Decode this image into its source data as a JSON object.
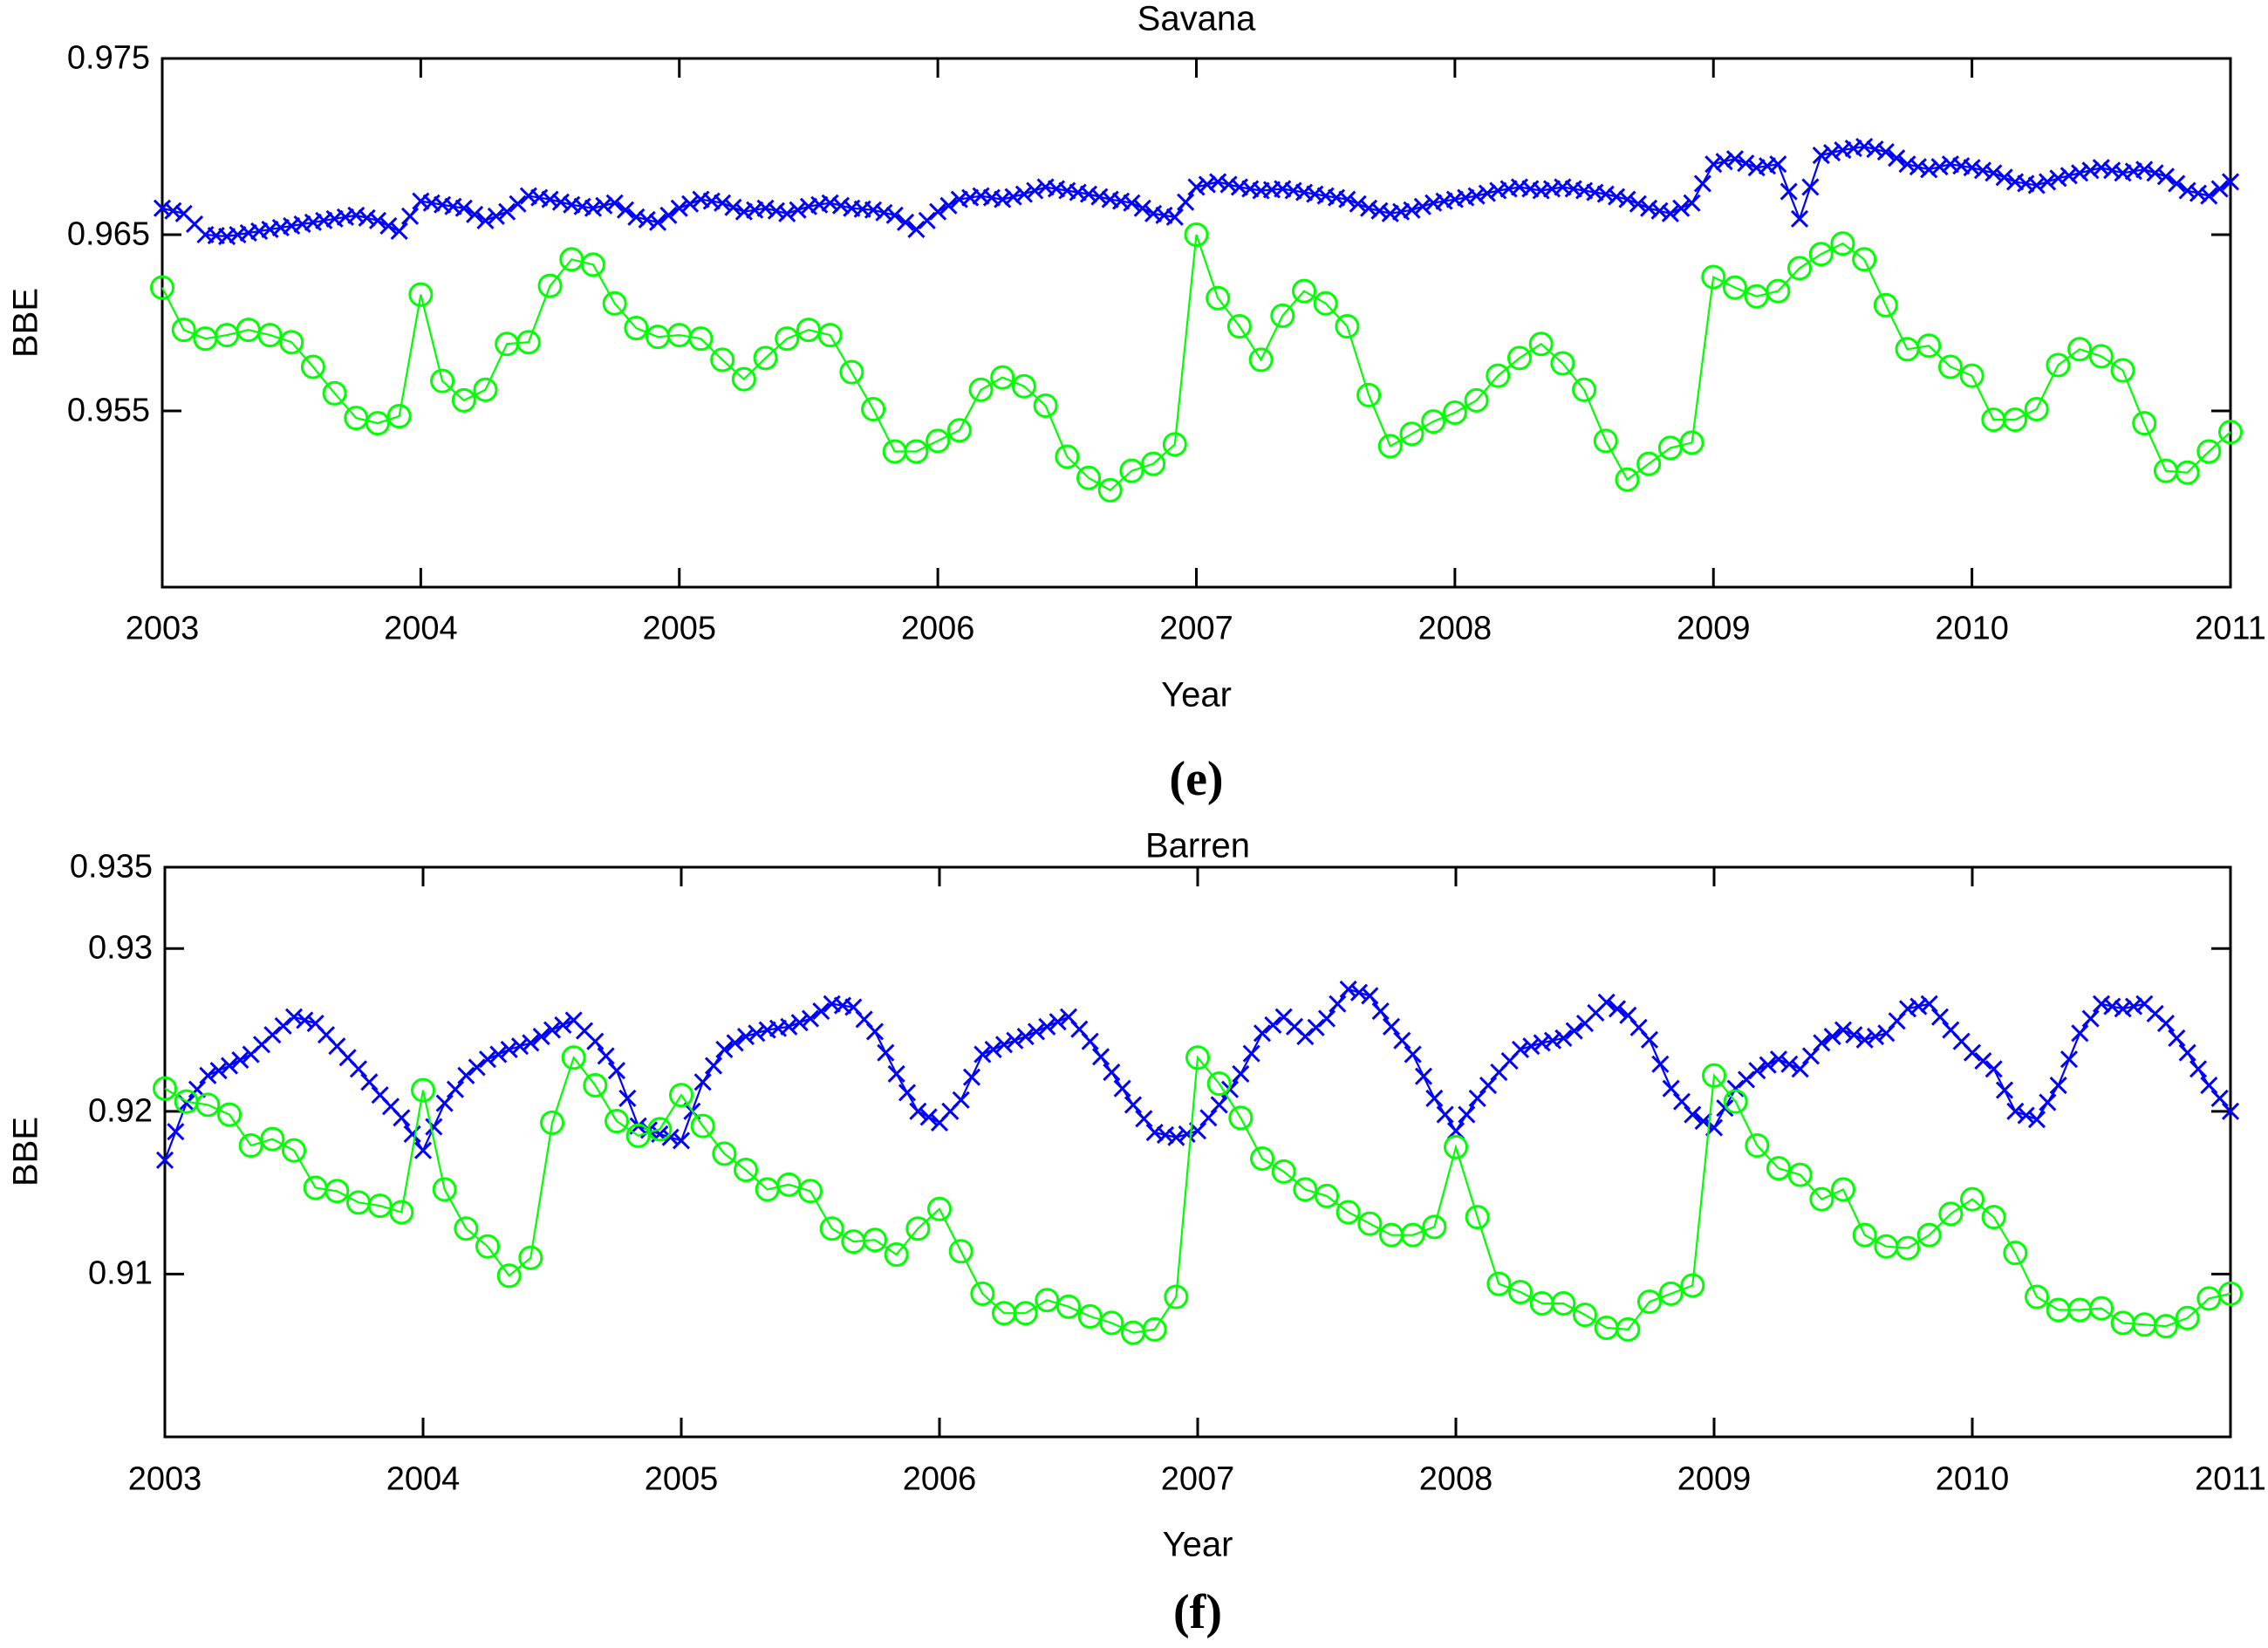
{
  "colors": {
    "axis": "#000000",
    "series_blue": "#0000FF",
    "series_green": "#00FF00",
    "background": "#FFFFFF"
  },
  "chart_data": [
    {
      "type": "line",
      "title": "Savana",
      "xlabel": "Year",
      "ylabel": "BBE",
      "panel_label": "(e)",
      "xlim": [
        2003,
        2011
      ],
      "ylim": [
        0.945,
        0.975
      ],
      "xticks": [
        2003,
        2004,
        2005,
        2006,
        2007,
        2008,
        2009,
        2010,
        2011
      ],
      "xtick_labels": [
        "2003",
        "2004",
        "2005",
        "2006",
        "2007",
        "2008",
        "2009",
        "2010",
        "2011"
      ],
      "yticks": [
        0.955,
        0.965,
        0.975
      ],
      "ytick_labels": [
        "0.955",
        "0.965",
        "0.975"
      ],
      "grid": false,
      "legend": "none",
      "x_rule": {
        "start": 2003,
        "step": 0.0833333,
        "clamp_last_to": 2011
      },
      "series": [
        {
          "name": "blue_x",
          "marker": "x",
          "color": "#0000FF",
          "values": [
            0.9665,
            0.9662,
            0.965,
            0.9649,
            0.9651,
            0.9653,
            0.9655,
            0.9657,
            0.9659,
            0.9661,
            0.9658,
            0.9652,
            0.9669,
            0.9667,
            0.9665,
            0.9658,
            0.9663,
            0.9672,
            0.967,
            0.9667,
            0.9665,
            0.9668,
            0.966,
            0.9657,
            0.9665,
            0.967,
            0.9668,
            0.9663,
            0.9665,
            0.9662,
            0.9666,
            0.9668,
            0.9665,
            0.9664,
            0.9661,
            0.9653,
            0.9663,
            0.967,
            0.9672,
            0.967,
            0.9673,
            0.9677,
            0.9675,
            0.9673,
            0.967,
            0.9668,
            0.9662,
            0.966,
            0.9677,
            0.968,
            0.9677,
            0.9675,
            0.9676,
            0.9674,
            0.9672,
            0.967,
            0.9665,
            0.9662,
            0.9664,
            0.9668,
            0.967,
            0.9672,
            0.9675,
            0.9677,
            0.9675,
            0.9677,
            0.9675,
            0.9673,
            0.967,
            0.9665,
            0.9662,
            0.9668,
            0.969,
            0.9693,
            0.9688,
            0.969,
            0.9659,
            0.9695,
            0.9698,
            0.97,
            0.9697,
            0.969,
            0.9687,
            0.969,
            0.9688,
            0.9685,
            0.968,
            0.9678,
            0.9682,
            0.9685,
            0.9688,
            0.9685,
            0.9687,
            0.9683,
            0.9675,
            0.9672,
            0.968
          ]
        },
        {
          "name": "green_o",
          "marker": "o",
          "color": "#00FF00",
          "values": [
            0.962,
            0.9596,
            0.9591,
            0.9593,
            0.9596,
            0.9593,
            0.9589,
            0.9575,
            0.956,
            0.9546,
            0.9543,
            0.9547,
            0.9616,
            0.9567,
            0.9556,
            0.9562,
            0.9588,
            0.9589,
            0.9621,
            0.9636,
            0.9633,
            0.9611,
            0.9597,
            0.9592,
            0.9593,
            0.9591,
            0.9579,
            0.9568,
            0.958,
            0.9591,
            0.9596,
            0.9593,
            0.9572,
            0.9551,
            0.9527,
            0.9527,
            0.9533,
            0.9539,
            0.9562,
            0.9569,
            0.9564,
            0.9553,
            0.9524,
            0.9512,
            0.9505,
            0.9516,
            0.952,
            0.9531,
            0.965,
            0.9614,
            0.9598,
            0.9579,
            0.9604,
            0.9618,
            0.9611,
            0.9598,
            0.9559,
            0.953,
            0.9537,
            0.9544,
            0.9549,
            0.9556,
            0.957,
            0.958,
            0.9588,
            0.9577,
            0.9562,
            0.9533,
            0.9511,
            0.952,
            0.9529,
            0.9532,
            0.9626,
            0.962,
            0.9615,
            0.9618,
            0.9631,
            0.9639,
            0.9645,
            0.9636,
            0.961,
            0.9585,
            0.9587,
            0.9575,
            0.957,
            0.9545,
            0.9545,
            0.9551,
            0.9576,
            0.9585,
            0.9581,
            0.9573,
            0.9543,
            0.9516,
            0.9515,
            0.9527,
            0.9538
          ]
        }
      ]
    },
    {
      "type": "line",
      "title": "Barren",
      "xlabel": "Year",
      "ylabel": "BBE",
      "panel_label": "(f)",
      "xlim": [
        2003,
        2011
      ],
      "ylim": [
        0.9,
        0.935
      ],
      "xticks": [
        2003,
        2004,
        2005,
        2006,
        2007,
        2008,
        2009,
        2010,
        2011
      ],
      "xtick_labels": [
        "2003",
        "2004",
        "2005",
        "2006",
        "2007",
        "2008",
        "2009",
        "2010",
        "2011"
      ],
      "yticks": [
        0.91,
        0.92,
        0.93,
        0.935
      ],
      "ytick_labels": [
        "0.91",
        "0.92",
        "0.93",
        "0.935"
      ],
      "grid": false,
      "legend": "none",
      "x_rule": {
        "start": 2003,
        "step": 0.0833333,
        "clamp_last_to": 2011
      },
      "series": [
        {
          "name": "blue_x",
          "marker": "x",
          "color": "#0000FF",
          "values": [
            0.917,
            0.9205,
            0.9222,
            0.9228,
            0.9235,
            0.9247,
            0.9258,
            0.9254,
            0.924,
            0.9226,
            0.921,
            0.9196,
            0.9176,
            0.9205,
            0.9222,
            0.9232,
            0.9238,
            0.9242,
            0.925,
            0.9256,
            0.9243,
            0.9225,
            0.9191,
            0.9186,
            0.9182,
            0.9218,
            0.9238,
            0.9246,
            0.925,
            0.9252,
            0.9257,
            0.9266,
            0.9264,
            0.9249,
            0.9223,
            0.92,
            0.9193,
            0.9207,
            0.9235,
            0.9241,
            0.9246,
            0.9252,
            0.9258,
            0.9243,
            0.9224,
            0.9204,
            0.9187,
            0.9184,
            0.9188,
            0.9204,
            0.9223,
            0.9248,
            0.9258,
            0.9246,
            0.9257,
            0.9275,
            0.9271,
            0.9252,
            0.9235,
            0.9208,
            0.9188,
            0.9208,
            0.9224,
            0.9238,
            0.9242,
            0.9245,
            0.9254,
            0.9267,
            0.9259,
            0.9244,
            0.9214,
            0.9198,
            0.919,
            0.9214,
            0.9225,
            0.9232,
            0.9226,
            0.9242,
            0.925,
            0.9244,
            0.9248,
            0.9263,
            0.9266,
            0.925,
            0.9236,
            0.9226,
            0.92,
            0.9195,
            0.9216,
            0.9248,
            0.9266,
            0.9263,
            0.9266,
            0.9254,
            0.9236,
            0.9216,
            0.92
          ]
        },
        {
          "name": "green_o",
          "marker": "o",
          "color": "#00FF00",
          "values": [
            0.9214,
            0.9206,
            0.9204,
            0.9198,
            0.9179,
            0.9183,
            0.9176,
            0.9153,
            0.9151,
            0.9144,
            0.9142,
            0.9138,
            0.9213,
            0.9152,
            0.9128,
            0.9117,
            0.9099,
            0.911,
            0.9193,
            0.9233,
            0.9216,
            0.9194,
            0.9185,
            0.9189,
            0.921,
            0.9191,
            0.9174,
            0.9164,
            0.9152,
            0.9155,
            0.9151,
            0.9128,
            0.912,
            0.9121,
            0.9112,
            0.9128,
            0.914,
            0.9114,
            0.9088,
            0.9076,
            0.9076,
            0.9084,
            0.908,
            0.9074,
            0.907,
            0.9064,
            0.9066,
            0.9086,
            0.9233,
            0.9217,
            0.9196,
            0.9171,
            0.9163,
            0.9152,
            0.9148,
            0.9138,
            0.9131,
            0.9124,
            0.9124,
            0.9129,
            0.9178,
            0.9135,
            0.9094,
            0.9089,
            0.9082,
            0.9082,
            0.9075,
            0.9067,
            0.9066,
            0.9083,
            0.9088,
            0.9093,
            0.9222,
            0.9206,
            0.9179,
            0.9165,
            0.9161,
            0.9146,
            0.9152,
            0.9124,
            0.9117,
            0.9116,
            0.9124,
            0.9137,
            0.9146,
            0.9135,
            0.9113,
            0.9086,
            0.9078,
            0.9078,
            0.9079,
            0.907,
            0.9069,
            0.9068,
            0.9073,
            0.9085,
            0.9088
          ]
        }
      ]
    }
  ]
}
